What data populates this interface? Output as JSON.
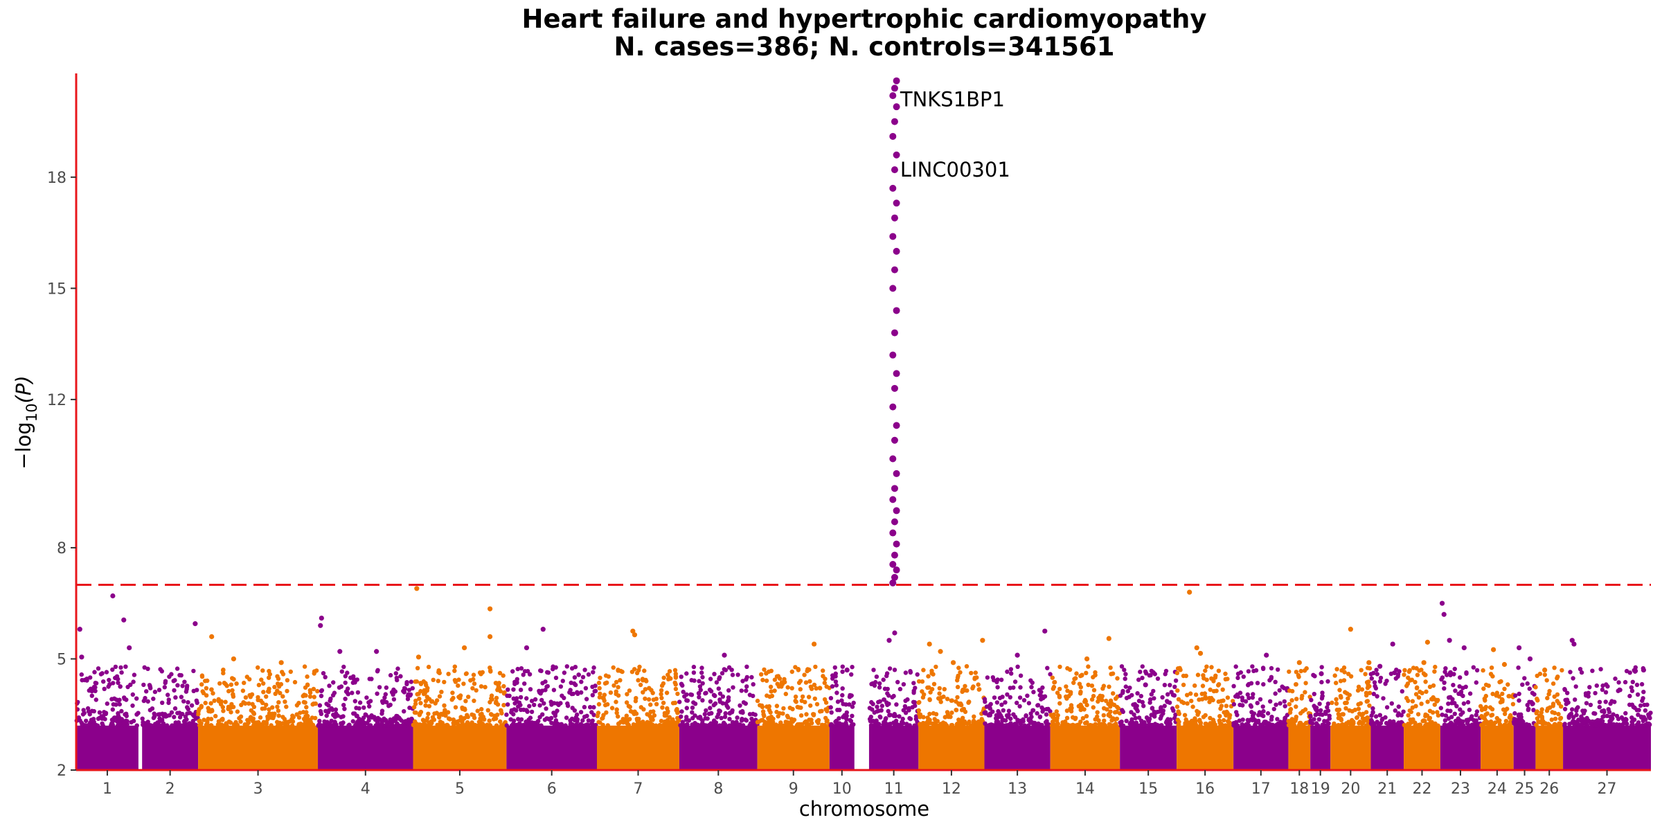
{
  "chart_data": {
    "type": "scatter",
    "subtype": "manhattan",
    "title": "Heart failure and hypertrophic cardiomyopathy",
    "subtitle": "N. cases=386; N. controls=341561",
    "xlabel": "chromosome",
    "ylabel": "−log10(P)",
    "ylabel_base": "−log",
    "ylabel_sub": "10",
    "ylabel_arg": "(P)",
    "ylim": [
      2,
      20.8
    ],
    "yticks": [
      2,
      5,
      8,
      12,
      15,
      18
    ],
    "threshold": 7.0,
    "threshold_color": "#e8161b",
    "axis_color": "#e8161b",
    "colors": [
      "#8b008b",
      "#ee7600"
    ],
    "chromosomes": [
      {
        "label": "1",
        "color": "#8b008b",
        "range": [
          0.0,
          1.7
        ],
        "peaks": [
          [
            0.1,
            5.8
          ],
          [
            0.15,
            5.05
          ],
          [
            1.0,
            6.7
          ],
          [
            1.3,
            6.05
          ],
          [
            1.45,
            5.3
          ]
        ]
      },
      {
        "label": "2",
        "color": "#8b008b",
        "range": [
          1.8,
          3.33
        ],
        "peaks": [
          [
            3.25,
            5.95
          ]
        ]
      },
      {
        "label": "3",
        "color": "#ee7600",
        "range": [
          3.33,
          6.6
        ],
        "peaks": [
          [
            3.7,
            5.6
          ],
          [
            4.3,
            5.0
          ],
          [
            5.6,
            4.9
          ]
        ]
      },
      {
        "label": "4",
        "color": "#8b008b",
        "range": [
          6.6,
          9.2
        ],
        "peaks": [
          [
            6.7,
            6.1
          ],
          [
            6.67,
            5.9
          ],
          [
            7.2,
            5.2
          ],
          [
            8.2,
            5.2
          ]
        ]
      },
      {
        "label": "5",
        "color": "#ee7600",
        "range": [
          9.2,
          11.75
        ],
        "peaks": [
          [
            9.3,
            6.9
          ],
          [
            9.35,
            5.05
          ],
          [
            10.6,
            5.3
          ],
          [
            11.3,
            6.35
          ],
          [
            11.3,
            5.6
          ]
        ]
      },
      {
        "label": "6",
        "color": "#8b008b",
        "range": [
          11.75,
          14.22
        ],
        "peaks": [
          [
            12.3,
            5.3
          ],
          [
            12.75,
            5.8
          ]
        ]
      },
      {
        "label": "7",
        "color": "#ee7600",
        "range": [
          14.22,
          16.47
        ],
        "peaks": [
          [
            15.2,
            5.75
          ],
          [
            15.25,
            5.65
          ]
        ]
      },
      {
        "label": "8",
        "color": "#8b008b",
        "range": [
          16.47,
          18.6
        ],
        "peaks": [
          [
            17.7,
            5.1
          ]
        ]
      },
      {
        "label": "9",
        "color": "#ee7600",
        "range": [
          18.6,
          20.57
        ],
        "peaks": [
          [
            20.15,
            5.4
          ]
        ]
      },
      {
        "label": "10",
        "color": "#8b008b",
        "range": [
          20.57,
          21.25
        ],
        "peaks": [
          [
            21.05,
            4.7
          ]
        ]
      },
      {
        "label": "11",
        "color": "#8b008b",
        "range": [
          21.65,
          23.0
        ],
        "peaks": [
          [
            22.35,
            5.7
          ],
          [
            22.2,
            5.5
          ]
        ]
      },
      {
        "label": "12",
        "color": "#ee7600",
        "range": [
          23.0,
          24.8
        ],
        "peaks": [
          [
            23.3,
            5.4
          ],
          [
            23.6,
            5.2
          ],
          [
            23.95,
            4.9
          ],
          [
            24.75,
            5.5
          ]
        ]
      },
      {
        "label": "13",
        "color": "#8b008b",
        "range": [
          24.8,
          26.6
        ],
        "peaks": [
          [
            26.45,
            5.75
          ],
          [
            25.7,
            5.1
          ]
        ]
      },
      {
        "label": "14",
        "color": "#ee7600",
        "range": [
          26.6,
          28.5
        ],
        "peaks": [
          [
            28.2,
            5.55
          ],
          [
            27.6,
            5.0
          ]
        ]
      },
      {
        "label": "15",
        "color": "#8b008b",
        "range": [
          28.5,
          30.05
        ],
        "peaks": [
          [
            29.2,
            4.3
          ]
        ]
      },
      {
        "label": "16",
        "color": "#ee7600",
        "range": [
          30.05,
          31.6
        ],
        "peaks": [
          [
            30.4,
            6.8
          ],
          [
            30.6,
            5.3
          ],
          [
            30.7,
            5.15
          ]
        ]
      },
      {
        "label": "17",
        "color": "#8b008b",
        "range": [
          31.6,
          33.1
        ],
        "peaks": [
          [
            32.5,
            5.1
          ]
        ]
      },
      {
        "label": "18",
        "color": "#ee7600",
        "range": [
          33.1,
          33.7
        ],
        "peaks": [
          [
            33.4,
            4.9
          ]
        ]
      },
      {
        "label": "19",
        "color": "#8b008b",
        "range": [
          33.7,
          34.25
        ],
        "peaks": [
          [
            34.0,
            4.6
          ]
        ]
      },
      {
        "label": "20",
        "color": "#ee7600",
        "range": [
          34.25,
          35.35
        ],
        "peaks": [
          [
            34.8,
            5.8
          ],
          [
            35.3,
            4.9
          ]
        ]
      },
      {
        "label": "21",
        "color": "#8b008b",
        "range": [
          35.35,
          36.25
        ],
        "peaks": [
          [
            35.95,
            5.4
          ],
          [
            35.6,
            4.8
          ]
        ]
      },
      {
        "label": "22",
        "color": "#ee7600",
        "range": [
          36.25,
          37.25
        ],
        "peaks": [
          [
            36.9,
            5.45
          ],
          [
            36.8,
            4.9
          ]
        ]
      },
      {
        "label": "23",
        "color": "#8b008b",
        "range": [
          37.25,
          38.35
        ],
        "peaks": [
          [
            37.3,
            6.5
          ],
          [
            37.35,
            6.2
          ],
          [
            37.5,
            5.5
          ],
          [
            37.9,
            5.3
          ]
        ]
      },
      {
        "label": "24",
        "color": "#ee7600",
        "range": [
          38.35,
          39.25
        ],
        "peaks": [
          [
            38.7,
            5.25
          ],
          [
            39.0,
            4.85
          ]
        ]
      },
      {
        "label": "25",
        "color": "#8b008b",
        "range": [
          39.25,
          39.85
        ],
        "peaks": [
          [
            39.4,
            5.3
          ],
          [
            39.7,
            5.0
          ]
        ]
      },
      {
        "label": "26",
        "color": "#ee7600",
        "range": [
          39.85,
          40.6
        ],
        "peaks": [
          [
            40.1,
            4.7
          ]
        ]
      },
      {
        "label": "27",
        "color": "#8b008b",
        "range": [
          40.6,
          43.0
        ],
        "peaks": [
          [
            40.85,
            5.5
          ],
          [
            40.9,
            5.4
          ],
          [
            42.8,
            4.7
          ]
        ]
      }
    ],
    "annotations": [
      {
        "text": "TNKS1BP1",
        "x": 22.5,
        "y": 20.1
      },
      {
        "text": "LINC00301",
        "x": 22.5,
        "y": 18.2
      }
    ]
  }
}
